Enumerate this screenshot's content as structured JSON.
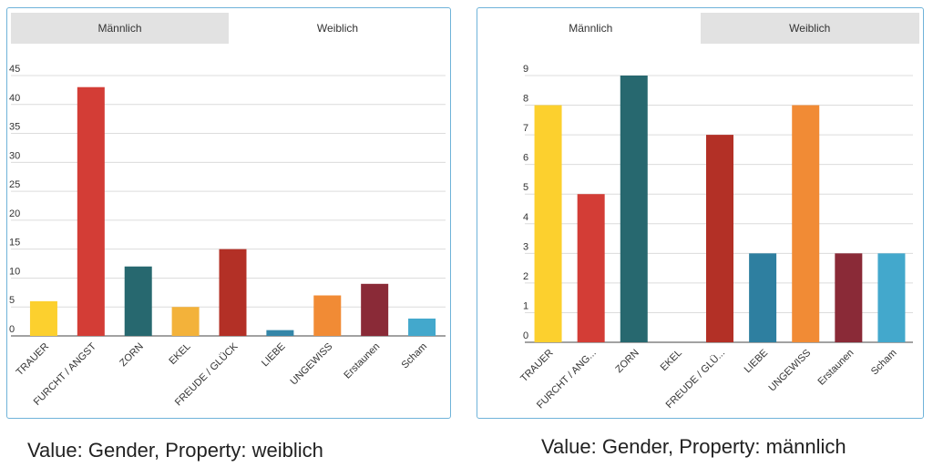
{
  "chart_data": [
    {
      "type": "bar",
      "tabs": [
        "Männlich",
        "Weiblich"
      ],
      "active_tab": 1,
      "categories": [
        "TRAUER",
        "FURCHT / ANGST",
        "ZORN",
        "EKEL",
        "FREUDE / GLÜCK",
        "LIEBE",
        "UNGEWISS",
        "Erstaunen",
        "Scham"
      ],
      "values": [
        6,
        43,
        12,
        5,
        15,
        1,
        7,
        9,
        3
      ],
      "colors": [
        "#fcd02e",
        "#d33d36",
        "#27686f",
        "#f3b23a",
        "#b33026",
        "#3486a8",
        "#f18b35",
        "#8a2a37",
        "#43a8cc"
      ],
      "yticks": [
        0,
        5,
        10,
        15,
        20,
        25,
        30,
        35,
        40,
        45
      ],
      "ylim": [
        0,
        45
      ],
      "grid": true,
      "caption": "Value: Gender, Property: weiblich"
    },
    {
      "type": "bar",
      "tabs": [
        "Männlich",
        "Weiblich"
      ],
      "active_tab": 0,
      "categories": [
        "TRAUER",
        "FURCHT / ANG...",
        "ZORN",
        "EKEL",
        "FREUDE / GLÜ...",
        "LIEBE",
        "UNGEWISS",
        "Erstaunen",
        "Scham"
      ],
      "values": [
        8,
        5,
        9,
        0,
        7,
        3,
        8,
        3,
        3
      ],
      "colors": [
        "#fcd02e",
        "#d33d36",
        "#27686f",
        "#f3b23a",
        "#b33026",
        "#2e7fa0",
        "#f18b35",
        "#8a2a37",
        "#43a8cc"
      ],
      "yticks": [
        0,
        1,
        2,
        3,
        4,
        5,
        6,
        7,
        8,
        9
      ],
      "ylim": [
        0,
        9
      ],
      "grid": true,
      "caption": "Value: Gender, Property: männlich"
    }
  ]
}
